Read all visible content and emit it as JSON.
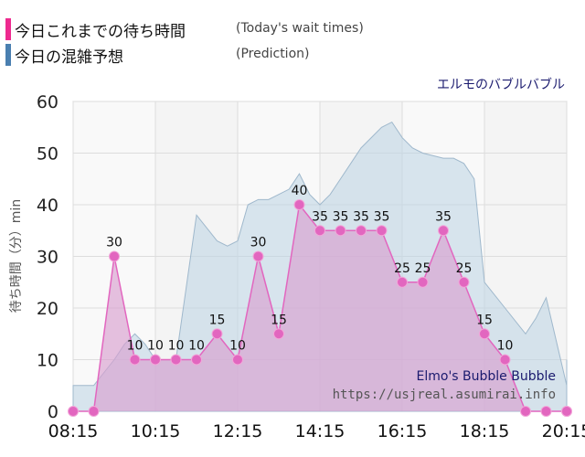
{
  "legend": {
    "today_label": "今日これまでの待ち時間",
    "today_note": "(Today's wait times)",
    "today_color": "#ee2a8f",
    "prediction_label": "今日の混雑予想",
    "prediction_note": "(Prediction)",
    "prediction_color": "#4a7fb0"
  },
  "attraction_name_ja": "エルモのバブルバブル",
  "watermark": {
    "name_en": "Elmo's Bubble Bubble",
    "url": "https://usjreal.asumirai.info"
  },
  "chart_data": {
    "type": "area",
    "ylabel": "待ち時間（分）min",
    "ylim": [
      0,
      60
    ],
    "y_ticks": [
      0,
      10,
      20,
      30,
      40,
      50,
      60
    ],
    "x_tick_labels": [
      "08:15",
      "10:15",
      "12:15",
      "14:15",
      "16:15",
      "18:15",
      "20:15"
    ],
    "grid": true,
    "series": [
      {
        "name": "今日これまでの待ち時間",
        "color": "#e266bf",
        "x": [
          "08:15",
          "08:45",
          "09:15",
          "09:45",
          "10:15",
          "10:45",
          "11:15",
          "11:45",
          "12:15",
          "12:45",
          "13:15",
          "13:45",
          "14:15",
          "14:45",
          "15:15",
          "15:45",
          "16:15",
          "16:45",
          "17:15",
          "17:45",
          "18:15",
          "18:45",
          "19:15",
          "19:45",
          "20:15",
          "20:45"
        ],
        "values": [
          0,
          0,
          30,
          10,
          10,
          10,
          10,
          15,
          10,
          30,
          15,
          40,
          35,
          35,
          35,
          35,
          25,
          25,
          35,
          25,
          15,
          10,
          0,
          0,
          0,
          0
        ],
        "labels": [
          null,
          null,
          "30",
          "10",
          "10",
          "10",
          "10",
          "15",
          "10",
          "30",
          "15",
          "40",
          "35",
          "35",
          "35",
          "35",
          "25",
          "25",
          "35",
          "25",
          "15",
          "10",
          null,
          null,
          null,
          null
        ]
      },
      {
        "name": "今日の混雑予想",
        "color": "#4a7fb0",
        "x": [
          "08:15",
          "08:45",
          "09:15",
          "09:30",
          "09:45",
          "10:00",
          "10:15",
          "10:45",
          "11:15",
          "11:45",
          "12:00",
          "12:15",
          "12:30",
          "12:45",
          "13:00",
          "13:30",
          "13:45",
          "14:00",
          "14:15",
          "14:30",
          "14:45",
          "15:15",
          "15:45",
          "16:00",
          "16:15",
          "16:30",
          "16:45",
          "17:15",
          "17:30",
          "17:45",
          "18:00",
          "18:15",
          "18:45",
          "19:15",
          "19:30",
          "19:45",
          "20:15",
          "20:45",
          "21:00"
        ],
        "values": [
          5,
          5,
          10,
          13,
          15,
          13,
          10,
          10,
          38,
          33,
          32,
          33,
          40,
          41,
          41,
          43,
          46,
          42,
          40,
          42,
          45,
          51,
          55,
          56,
          53,
          51,
          50,
          49,
          49,
          48,
          45,
          25,
          20,
          15,
          18,
          22,
          5,
          5,
          10
        ]
      }
    ]
  }
}
